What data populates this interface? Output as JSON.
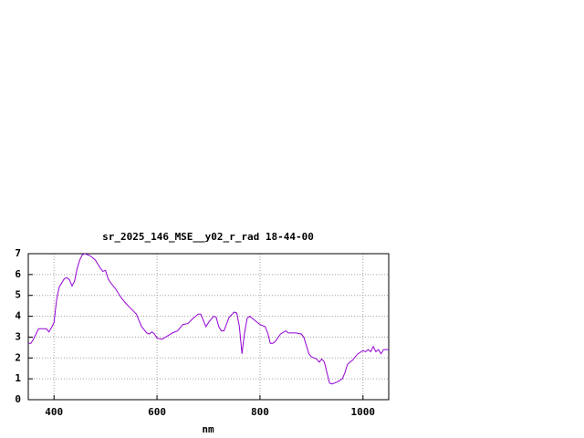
{
  "chart_data": {
    "type": "line",
    "title": "sr_2025_146_MSE__y02_r_rad 18-44-00",
    "x_label": "nm",
    "x": [
      350,
      355,
      360,
      370,
      380,
      385,
      390,
      395,
      400,
      405,
      410,
      420,
      425,
      430,
      435,
      440,
      445,
      450,
      455,
      460,
      470,
      480,
      490,
      495,
      500,
      505,
      510,
      520,
      530,
      540,
      550,
      560,
      565,
      570,
      580,
      585,
      590,
      595,
      600,
      610,
      620,
      630,
      640,
      650,
      660,
      670,
      680,
      685,
      690,
      695,
      700,
      710,
      715,
      720,
      725,
      730,
      740,
      750,
      755,
      760,
      765,
      770,
      775,
      780,
      790,
      800,
      810,
      815,
      820,
      825,
      830,
      840,
      850,
      855,
      860,
      870,
      880,
      885,
      890,
      895,
      900,
      910,
      915,
      920,
      925,
      930,
      935,
      940,
      950,
      960,
      965,
      970,
      980,
      990,
      1000,
      1005,
      1010,
      1015,
      1020,
      1025,
      1030,
      1035,
      1040,
      1050
    ],
    "series": [
      {
        "color": "#9400d3",
        "values": [
          2.7,
          2.7,
          2.9,
          3.4,
          3.4,
          3.4,
          3.25,
          3.45,
          3.7,
          4.8,
          5.4,
          5.8,
          5.85,
          5.75,
          5.45,
          5.7,
          6.3,
          6.7,
          6.95,
          7.0,
          6.9,
          6.7,
          6.3,
          6.15,
          6.2,
          5.8,
          5.6,
          5.3,
          4.9,
          4.6,
          4.35,
          4.1,
          3.8,
          3.5,
          3.2,
          3.15,
          3.25,
          3.15,
          2.95,
          2.9,
          3.05,
          3.2,
          3.3,
          3.6,
          3.65,
          3.9,
          4.1,
          4.1,
          3.8,
          3.5,
          3.7,
          4.0,
          3.95,
          3.5,
          3.3,
          3.3,
          3.95,
          4.2,
          4.15,
          3.5,
          2.2,
          3.2,
          3.9,
          4.0,
          3.8,
          3.6,
          3.5,
          3.2,
          2.7,
          2.7,
          2.8,
          3.15,
          3.3,
          3.2,
          3.2,
          3.2,
          3.15,
          3.0,
          2.6,
          2.2,
          2.05,
          1.95,
          1.8,
          1.95,
          1.8,
          1.3,
          0.8,
          0.75,
          0.85,
          1.0,
          1.3,
          1.7,
          1.9,
          2.2,
          2.35,
          2.3,
          2.4,
          2.3,
          2.55,
          2.3,
          2.4,
          2.2,
          2.4,
          2.4
        ]
      }
    ],
    "xlim": [
      350,
      1050
    ],
    "xticks": [
      400,
      600,
      800,
      1000
    ],
    "ylim": [
      0,
      7
    ],
    "yticks": [
      0,
      1,
      2,
      3,
      4,
      5,
      6,
      7
    ],
    "grid": true
  }
}
